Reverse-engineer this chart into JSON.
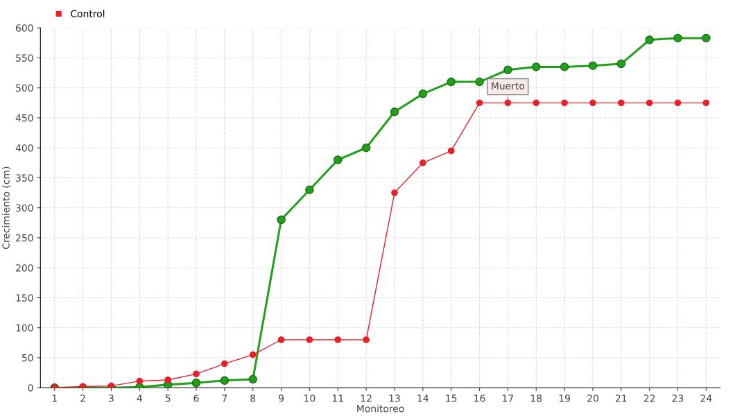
{
  "chart_data": {
    "type": "line",
    "xlabel": "Monitoreo",
    "ylabel": "Crecimiento (cm)",
    "categories": [
      "1",
      "2",
      "3",
      "4",
      "5",
      "6",
      "7",
      "8",
      "9",
      "10",
      "11",
      "12",
      "13",
      "14",
      "15",
      "16",
      "17",
      "18",
      "19",
      "20",
      "21",
      "22",
      "23",
      "24"
    ],
    "series": [
      {
        "color": "#22a01c",
        "values": [
          0,
          0,
          0,
          1,
          5,
          8,
          12,
          14,
          280,
          330,
          380,
          400,
          460,
          490,
          510,
          510,
          530,
          535,
          535,
          537,
          540,
          580,
          583,
          583
        ]
      },
      {
        "name": "Control",
        "color": "#e8202a",
        "values": [
          0,
          2,
          3,
          11,
          13,
          23,
          40,
          55,
          80,
          80,
          80,
          80,
          325,
          375,
          395,
          475,
          475,
          475,
          475,
          475,
          475,
          475,
          475,
          475
        ]
      }
    ],
    "ylim": [
      0,
      600
    ],
    "yticks": [
      0,
      50,
      100,
      150,
      200,
      250,
      300,
      350,
      400,
      450,
      500,
      550,
      600
    ],
    "annotations": [
      {
        "text": "Muerto",
        "x": "17",
        "y": 475
      }
    ],
    "grid": true,
    "legend": "top left",
    "marker": "circle",
    "line_style": "solid"
  }
}
